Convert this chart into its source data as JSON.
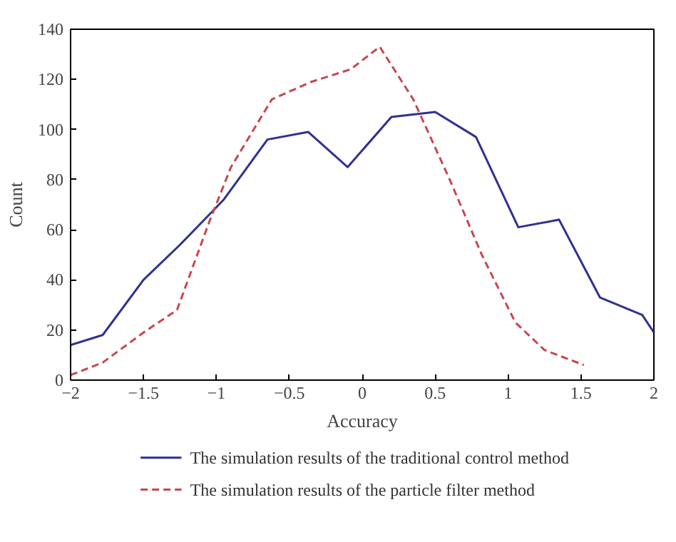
{
  "chart_data": {
    "type": "line",
    "xlabel": "Accuracy",
    "ylabel": "Count",
    "xlim": [
      -2,
      2
    ],
    "ylim": [
      0,
      140
    ],
    "xticks": [
      {
        "value": -2,
        "label": "−2"
      },
      {
        "value": -1.5,
        "label": "−1.5"
      },
      {
        "value": -1,
        "label": "−1"
      },
      {
        "value": -0.5,
        "label": "−0.5"
      },
      0,
      0.5,
      1,
      1.5,
      2
    ],
    "yticks": [
      0,
      20,
      40,
      60,
      80,
      100,
      120,
      140
    ],
    "grid": false,
    "legend": "bottom",
    "series": [
      {
        "name": "The simulation results of the traditional control method",
        "color": "#2e3192",
        "line_style": "solid",
        "x": [
          -2,
          -1.78,
          -1.5,
          -1.25,
          -0.95,
          -0.65,
          -0.37,
          -0.1,
          0.2,
          0.5,
          0.78,
          1.07,
          1.35,
          1.63,
          1.92,
          2
        ],
        "values": [
          14,
          18,
          40,
          54,
          72,
          96,
          99,
          85,
          105,
          107,
          97,
          61,
          64,
          33,
          26,
          19
        ]
      },
      {
        "name": "The simulation results of the particle filter method",
        "color": "#c8464e",
        "line_style": "dashed",
        "x": [
          -2,
          -1.78,
          -1.5,
          -1.27,
          -1.05,
          -0.9,
          -0.62,
          -0.35,
          -0.08,
          0.12,
          0.35,
          0.6,
          0.82,
          1.05,
          1.25,
          1.52
        ],
        "values": [
          2,
          7,
          19,
          28,
          63,
          85,
          112,
          119,
          124,
          133,
          112,
          80,
          50,
          23,
          12,
          6
        ]
      }
    ]
  }
}
